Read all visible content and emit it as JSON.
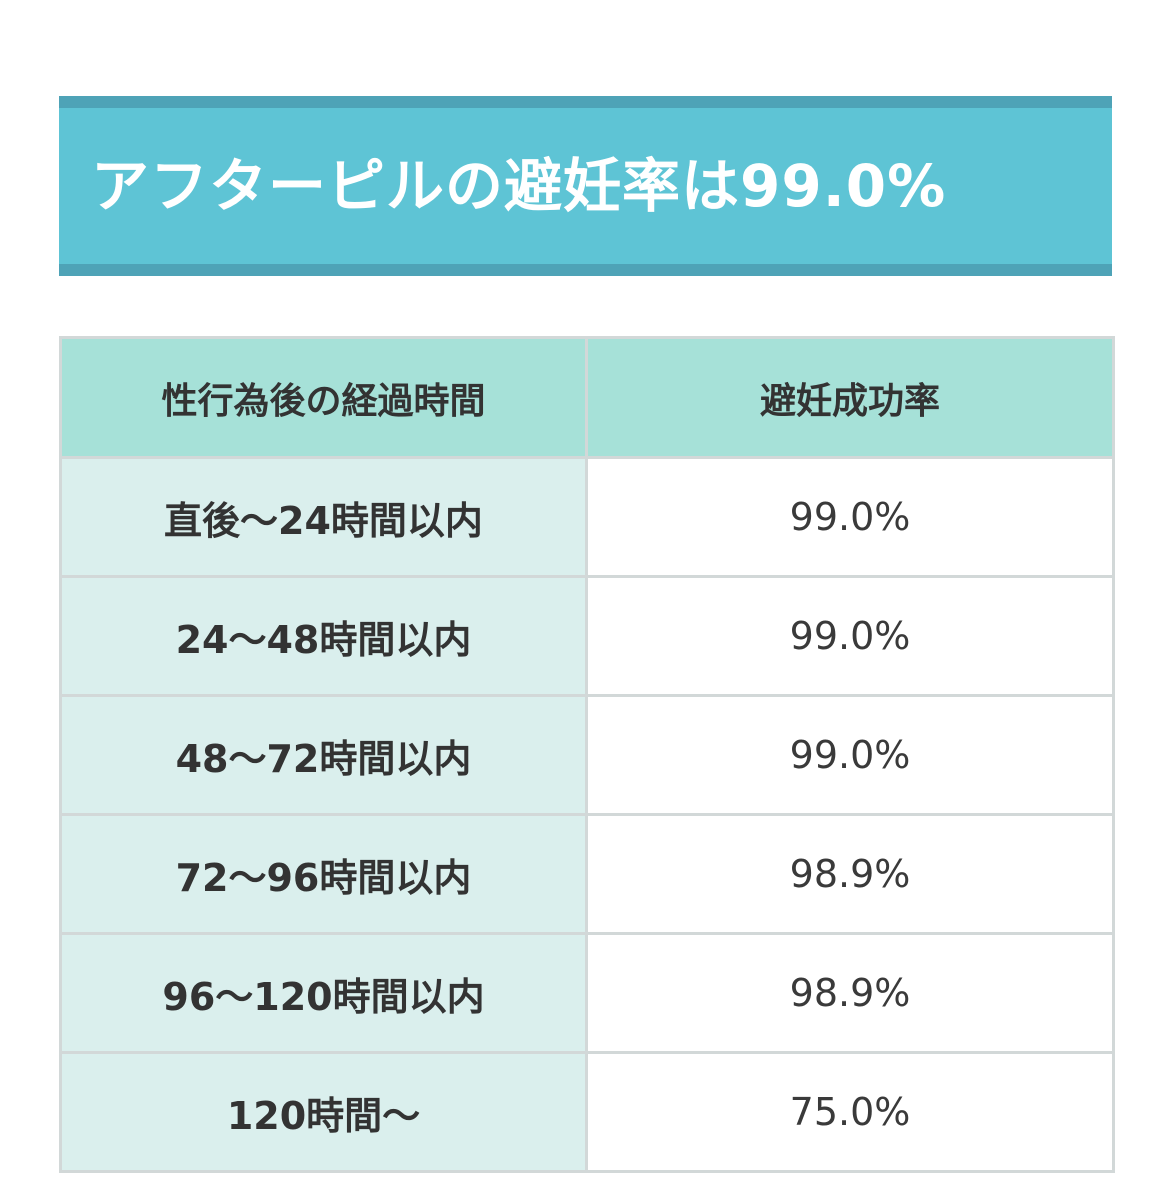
{
  "heading": {
    "title": "アフターピルの避妊率は99.0%"
  },
  "table": {
    "headers": [
      "性行為後の経過時間",
      "避妊成功率"
    ],
    "rows": [
      {
        "time": "直後〜24時間以内",
        "rate": "99.0%"
      },
      {
        "time": "24〜48時間以内",
        "rate": "99.0%"
      },
      {
        "time": "48〜72時間以内",
        "rate": "99.0%"
      },
      {
        "time": "72〜96時間以内",
        "rate": "98.9%"
      },
      {
        "time": "96〜120時間以内",
        "rate": "98.9%"
      },
      {
        "time": "120時間〜",
        "rate": "75.0%"
      }
    ]
  },
  "colors": {
    "heading_bg": "#5ec4d5",
    "heading_border": "#4ea3b7",
    "header_bg": "#a6e1d8",
    "time_cell_bg": "#daefed",
    "rate_cell_bg": "#ffffff",
    "border": "#d2d8d8",
    "text": "#333333"
  }
}
